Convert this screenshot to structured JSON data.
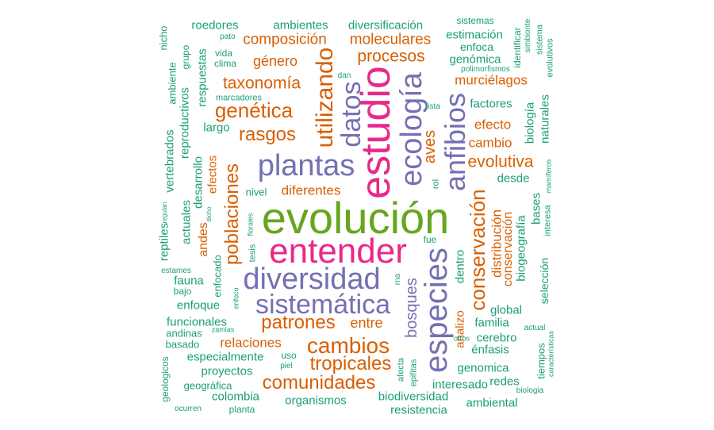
{
  "colors": {
    "teal": "#1b9e77",
    "orange": "#d95f02",
    "purple": "#7570b3",
    "magenta": "#e7298a",
    "green": "#66a61e"
  },
  "words": {
    "evolucion": "evolución",
    "entender": "entender",
    "estudio": "estudio",
    "especies": "especies",
    "ecologia": "ecología",
    "diversidad": "diversidad",
    "plantas": "plantas",
    "sistematica": "sistemática",
    "anfibios": "anfibios",
    "datos": "datos",
    "utilizando": "utilizando",
    "cambios": "cambios",
    "tropicales": "tropicales",
    "conservacion": "conservación",
    "poblaciones": "poblaciones",
    "comunidades": "comunidades",
    "patrones": "patrones",
    "genetica": "genética",
    "rasgos": "rasgos",
    "taxonomia": "taxonomía",
    "procesos": "procesos",
    "composicion": "composición",
    "moleculares": "moleculares",
    "evolutiva": "evolutiva",
    "bosques": "bosques",
    "aves": "aves",
    "murcielagos": "murciélagos",
    "genero": "género",
    "diferentes": "diferentes",
    "efecto": "efecto",
    "cambio": "cambio",
    "distribucion": "distribución",
    "relaciones": "relaciones",
    "entre": "entre",
    "analizo": "analizo",
    "andes": "andes",
    "efectos": "efectos",
    "ambientes": "ambientes",
    "diversificacion": "diversificación",
    "roedores": "roedores",
    "estimacion": "estimación",
    "enfoca": "enfoca",
    "genomica_accent": "genómica",
    "factores": "factores",
    "desde": "desde",
    "biogeografia": "biogeografía",
    "bases": "bases",
    "seleccion": "selección",
    "global": "global",
    "familia": "familia",
    "enfasis": "énfasis",
    "cerebro": "cerebro",
    "genomica": "genomica",
    "interesado": "interesado",
    "redes": "redes",
    "biodiversidad": "biodiversidad",
    "resistencia": "resistencia",
    "ambiental": "ambiental",
    "organismos": "organismos",
    "colombia": "colombia",
    "planta": "planta",
    "geografica": "geográfica",
    "proyectos": "proyectos",
    "especialmente": "especialmente",
    "basado": "basado",
    "funcionales": "funcionales",
    "andinas": "andinas",
    "enfoque": "enfoque",
    "bajo": "bajo",
    "fauna": "fauna",
    "enfocado": "enfocado",
    "reptiles": "reptiles",
    "actuales": "actuales",
    "desarrollo": "desarrollo",
    "vertebrados": "vertebrados",
    "reproductivos": "reproductivos",
    "largo": "largo",
    "respuestas": "respuestas",
    "nivel": "nivel",
    "ambiente": "ambiente",
    "nicho": "nicho",
    "grupo": "grupo",
    "pato": "pato",
    "vida": "vida",
    "clima": "clima",
    "marcadores": "marcadores",
    "dan": "dan",
    "sistemas": "sistemas",
    "simbionte": "simbionte",
    "sistema": "sistema",
    "identificar": "identificar",
    "evolutivos": "evolutivos",
    "polimorfismos": "polimorfismos",
    "lista": "lista",
    "naturales": "naturales",
    "biologia": "biología",
    "mamiferos": "mamíferos",
    "interesa": "interesa",
    "rol": "rol",
    "fue": "fue",
    "dentro": "dentro",
    "rna": "rna",
    "uso": "uso",
    "piel": "piel",
    "afecta": "afecta",
    "epifitas": "epifitas",
    "otros": "otros",
    "actual": "actual",
    "caracteristicas": "características",
    "tiempos": "tiempos",
    "biologia_small": "biologia",
    "geologicos": "geologicos",
    "ocurren": "ocurren",
    "estames": "estames",
    "regulan": "regulan",
    "dicho": "dicho",
    "tesis": "tesis",
    "florales": "florales",
    "enfoco": "enfoco",
    "zamias": "zamias"
  }
}
